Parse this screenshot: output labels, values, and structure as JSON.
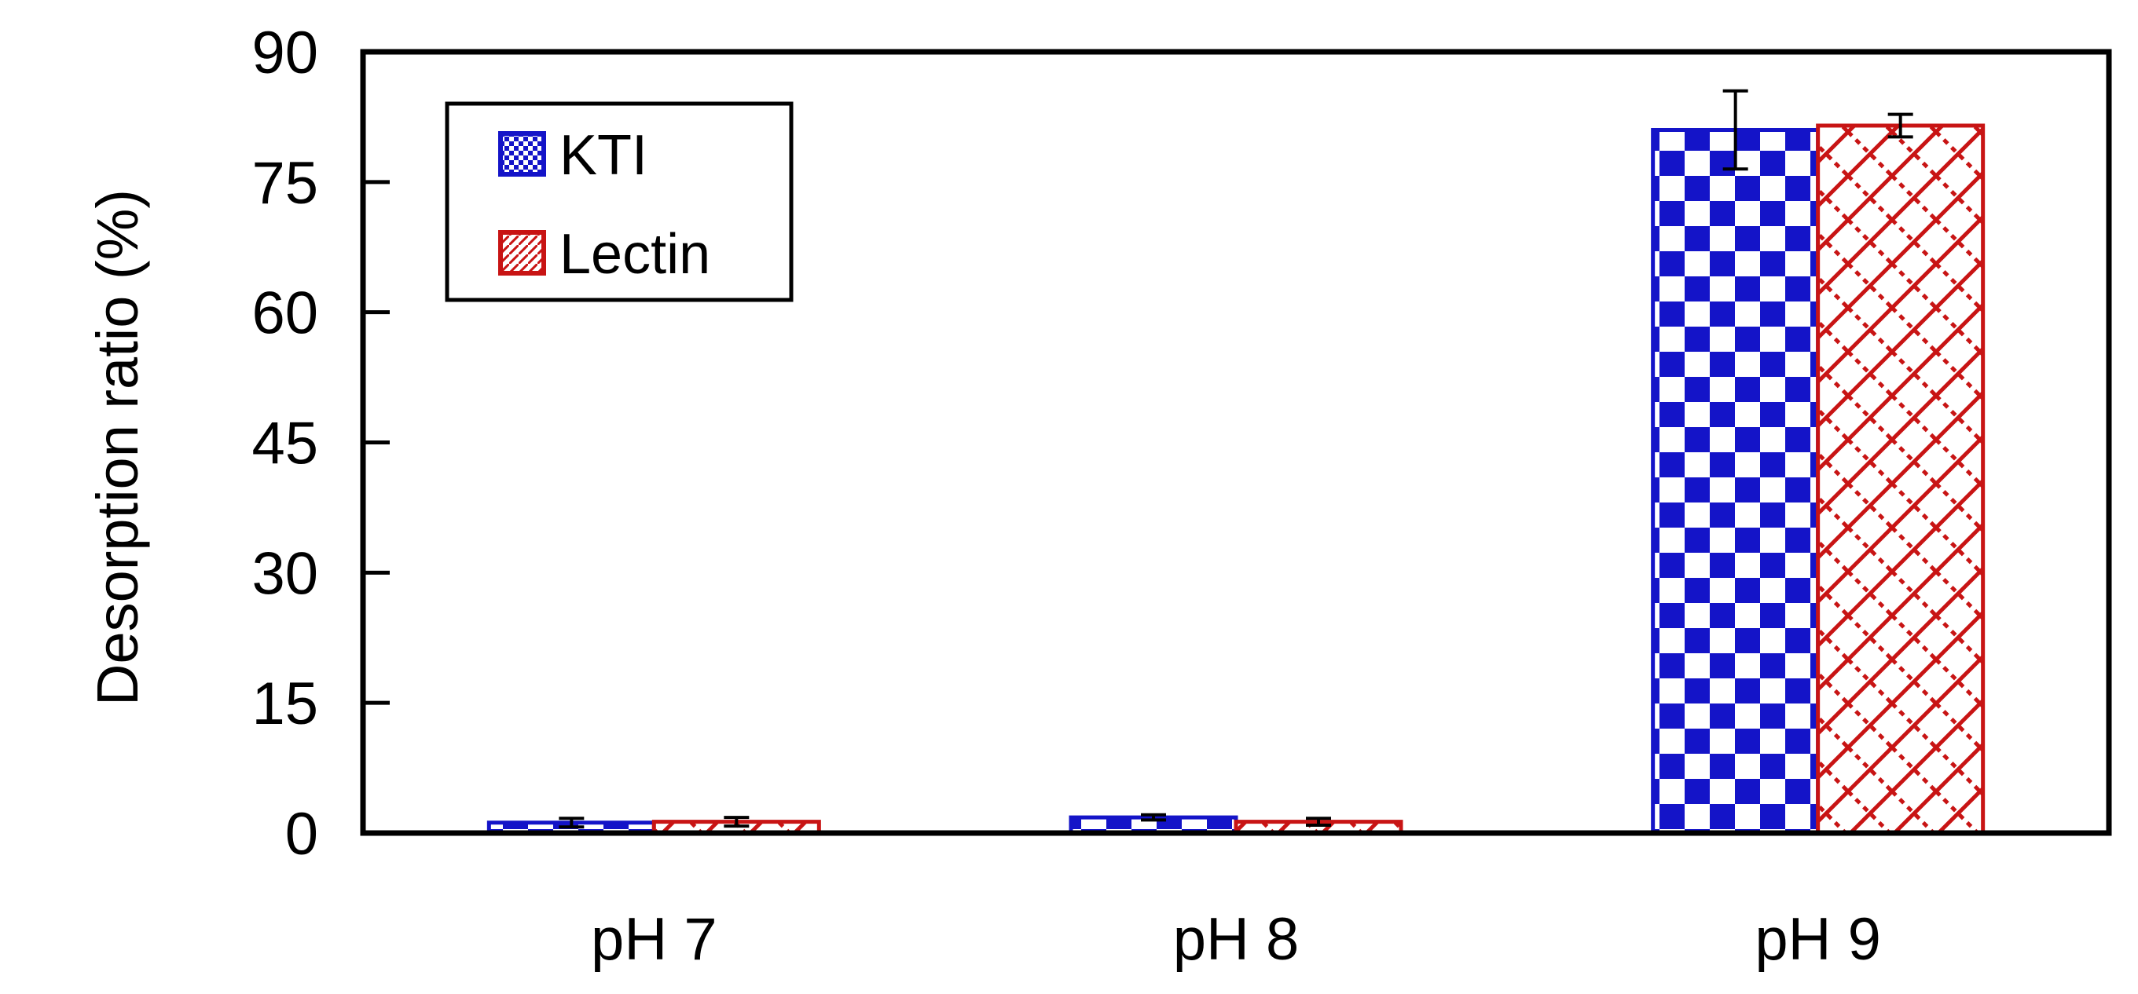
{
  "chart_data": {
    "type": "bar",
    "title": "",
    "xlabel": "",
    "ylabel": "Desorption ratio (%)",
    "ylim": [
      0,
      90
    ],
    "yticks": [
      0,
      15,
      30,
      45,
      60,
      75,
      90
    ],
    "categories": [
      "pH 7",
      "pH 8",
      "pH 9"
    ],
    "series": [
      {
        "name": "KTI",
        "values": [
          1.2,
          1.8,
          81.0
        ],
        "errors": [
          0.5,
          0.3,
          4.5
        ],
        "color": "#1414c8",
        "pattern": "checkerboard"
      },
      {
        "name": "Lectin",
        "values": [
          1.3,
          1.3,
          81.5
        ],
        "errors": [
          0.5,
          0.4,
          1.3
        ],
        "color": "#c81414",
        "pattern": "diagonal-crosshatch"
      }
    ],
    "legend": {
      "position": "top-left",
      "entries": [
        "KTI",
        "Lectin"
      ]
    },
    "grid": false
  }
}
